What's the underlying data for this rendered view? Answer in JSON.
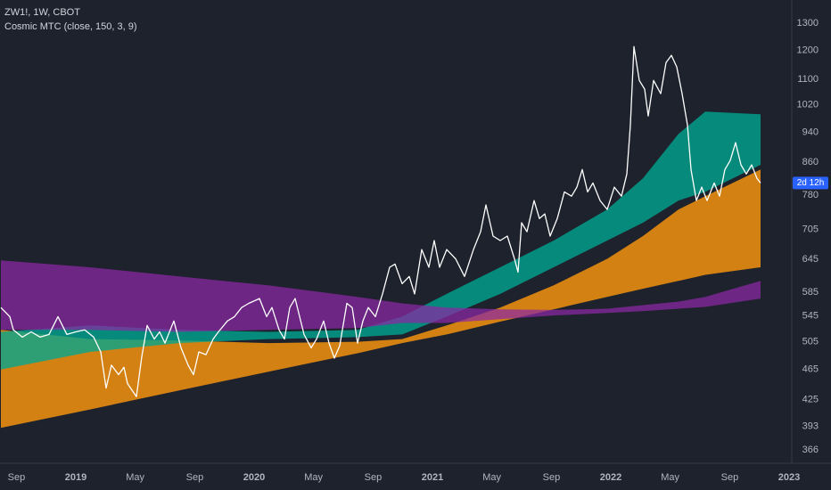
{
  "chart_data": {
    "type": "line",
    "title": "ZW1!, 1W, CBOT",
    "subtitle": "Cosmic MTC (close, 150, 3, 9)",
    "log_scale": true,
    "grid": false,
    "xlim": [
      2018.575,
      2023.015
    ],
    "ylim": [
      352,
      1393
    ],
    "xticks": [
      {
        "value": 2018.667,
        "label": "Sep"
      },
      2019,
      {
        "value": 2019.333,
        "label": "May"
      },
      {
        "value": 2019.667,
        "label": "Sep"
      },
      2020,
      {
        "value": 2020.333,
        "label": "May"
      },
      {
        "value": 2020.667,
        "label": "Sep"
      },
      2021,
      {
        "value": 2021.333,
        "label": "May"
      },
      {
        "value": 2021.667,
        "label": "Sep"
      },
      2022,
      {
        "value": 2022.333,
        "label": "May"
      },
      {
        "value": 2022.667,
        "label": "Sep"
      },
      2023
    ],
    "yticks": [
      366,
      393,
      425,
      465,
      505,
      545,
      585,
      645,
      705,
      780,
      860,
      940,
      1020,
      1100,
      1200,
      1300
    ],
    "series": [
      {
        "color": "#ffffff",
        "x": [
          2018.58,
          2018.63,
          2018.65,
          2018.7,
          2018.75,
          2018.8,
          2018.85,
          2018.9,
          2018.95,
          2019.0,
          2019.05,
          2019.1,
          2019.14,
          2019.17,
          2019.2,
          2019.24,
          2019.27,
          2019.29,
          2019.34,
          2019.37,
          2019.4,
          2019.44,
          2019.47,
          2019.5,
          2019.55,
          2019.59,
          2019.63,
          2019.66,
          2019.69,
          2019.73,
          2019.77,
          2019.8,
          2019.85,
          2019.89,
          2019.93,
          2019.97,
          2020.03,
          2020.07,
          2020.1,
          2020.14,
          2020.17,
          2020.2,
          2020.23,
          2020.28,
          2020.32,
          2020.35,
          2020.39,
          2020.42,
          2020.45,
          2020.48,
          2020.52,
          2020.55,
          2020.58,
          2020.61,
          2020.64,
          2020.68,
          2020.72,
          2020.76,
          2020.79,
          2020.83,
          2020.87,
          2020.9,
          2020.94,
          2020.98,
          2021.01,
          2021.04,
          2021.08,
          2021.13,
          2021.18,
          2021.23,
          2021.27,
          2021.3,
          2021.34,
          2021.38,
          2021.42,
          2021.46,
          2021.48,
          2021.5,
          2021.53,
          2021.57,
          2021.6,
          2021.63,
          2021.66,
          2021.7,
          2021.74,
          2021.78,
          2021.81,
          2021.84,
          2021.87,
          2021.9,
          2021.94,
          2021.98,
          2022.02,
          2022.06,
          2022.09,
          2022.11,
          2022.13,
          2022.16,
          2022.19,
          2022.21,
          2022.24,
          2022.28,
          2022.31,
          2022.34,
          2022.37,
          2022.4,
          2022.43,
          2022.45,
          2022.48,
          2022.51,
          2022.54,
          2022.58,
          2022.61,
          2022.64,
          2022.67,
          2022.7,
          2022.73,
          2022.76,
          2022.79,
          2022.82,
          2022.84
        ],
        "values": [
          559,
          544,
          523,
          512,
          520,
          512,
          516,
          544,
          516,
          520,
          523,
          512,
          490,
          440,
          471,
          458,
          468,
          446,
          429,
          483,
          530,
          509,
          520,
          503,
          537,
          496,
          471,
          458,
          490,
          486,
          509,
          520,
          537,
          544,
          559,
          566,
          574,
          544,
          559,
          523,
          509,
          559,
          574,
          516,
          496,
          509,
          537,
          503,
          481,
          499,
          566,
          559,
          503,
          537,
          559,
          544,
          582,
          630,
          636,
          600,
          613,
          582,
          664,
          630,
          682,
          630,
          664,
          646,
          613,
          664,
          700,
          758,
          691,
          682,
          691,
          646,
          621,
          719,
          700,
          768,
          728,
          738,
          691,
          728,
          788,
          778,
          799,
          842,
          788,
          809,
          768,
          748,
          799,
          778,
          831,
          961,
          1213,
          1097,
          1069,
          987,
          1097,
          1055,
          1157,
          1182,
          1142,
          1055,
          961,
          842,
          768,
          799,
          768,
          809,
          778,
          842,
          865,
          912,
          854,
          831,
          854,
          820,
          809
        ]
      }
    ],
    "band_x": [
      2018.58,
      2019.08,
      2019.58,
      2020.08,
      2020.58,
      2020.83,
      2021.08,
      2021.38,
      2021.68,
      2021.98,
      2022.18,
      2022.38,
      2022.53,
      2022.84
    ],
    "bands": [
      {
        "color": "rgba(230,140,15,0.9)",
        "upper": [
          523,
          509,
          507,
          503,
          505,
          509,
          530,
          559,
          597,
          646,
          691,
          748,
          778,
          842
        ],
        "lower": [
          391,
          413,
          437,
          462,
          488,
          503,
          516,
          536,
          556,
          577,
          591,
          605,
          616,
          630
        ]
      },
      {
        "color": "rgba(0,168,145,0.78)",
        "upper": [
          520,
          530,
          523,
          520,
          523,
          544,
          582,
          630,
          682,
          748,
          820,
          936,
          1000,
          992
        ],
        "lower": [
          465,
          490,
          503,
          509,
          512,
          516,
          544,
          582,
          630,
          682,
          719,
          768,
          788,
          854
        ]
      },
      {
        "color": "rgba(140,40,165,0.72)",
        "upper": [
          643,
          630,
          613,
          597,
          577,
          566,
          559,
          556,
          555,
          557,
          563,
          569,
          577,
          605
        ],
        "lower": [
          523,
          523,
          520,
          523,
          526,
          534,
          534,
          540,
          546,
          550,
          553,
          557,
          560,
          574
        ]
      }
    ],
    "countdown_label": "2d 12h",
    "countdown_color": "#2962ff"
  }
}
